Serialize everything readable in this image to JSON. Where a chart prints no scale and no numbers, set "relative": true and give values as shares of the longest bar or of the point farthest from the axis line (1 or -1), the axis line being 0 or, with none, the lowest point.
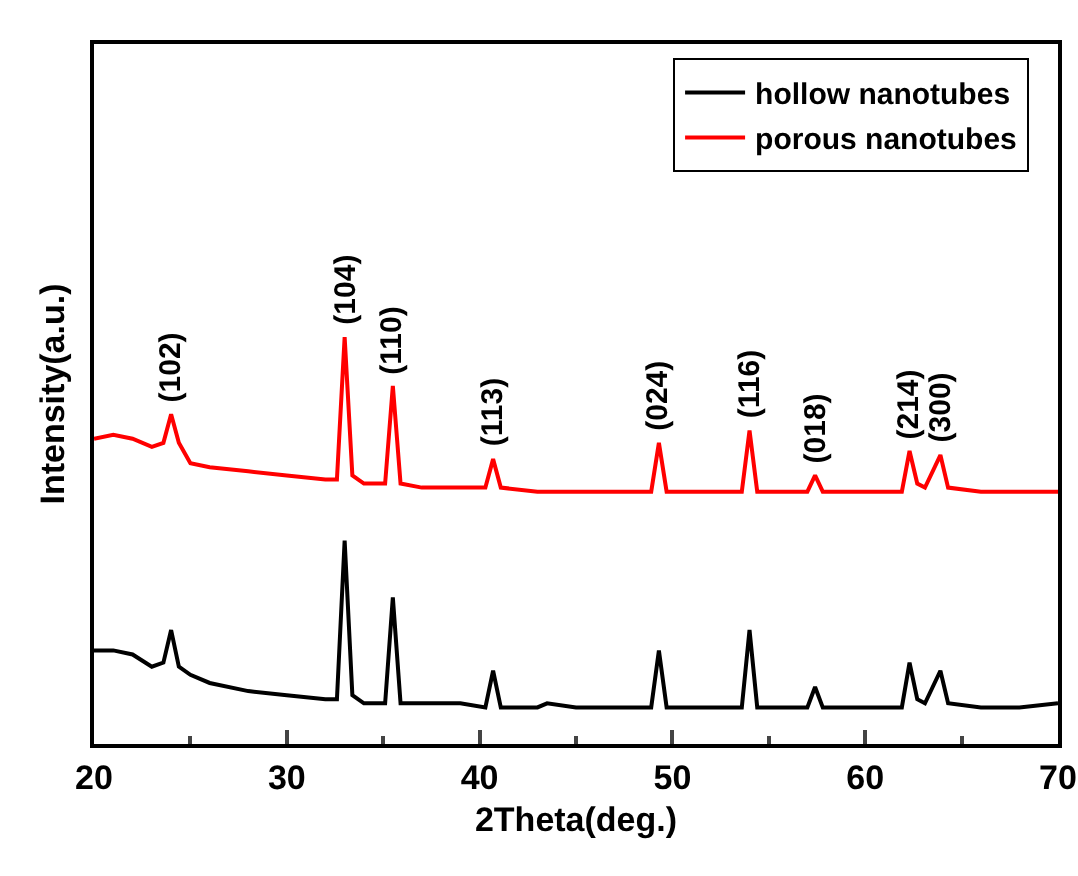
{
  "chart_data": {
    "type": "line",
    "relative": true,
    "xlabel": "2Theta(deg.)",
    "ylabel": "Intensity(a.u.)",
    "xlim": [
      20,
      70
    ],
    "xticks": [
      20,
      30,
      40,
      50,
      60,
      70
    ],
    "legend": "top right",
    "grid": false,
    "marker": "none",
    "line_style": "solid",
    "series": [
      {
        "name": "hollow nanotubes",
        "color": "#000000",
        "x": [
          20,
          21,
          22,
          23,
          23.6,
          24,
          24.4,
          25,
          26,
          28,
          30,
          32,
          32.6,
          33,
          33.4,
          34,
          35.1,
          35.5,
          35.9,
          37,
          39,
          40.3,
          40.7,
          41.1,
          43,
          43.5,
          45,
          48.9,
          49.3,
          49.7,
          52,
          53.6,
          54,
          54.4,
          57,
          57.4,
          57.8,
          60,
          61.9,
          62.3,
          62.7,
          63.1,
          63.9,
          64.3,
          66,
          68,
          70
        ],
        "values": [
          0.23,
          0.23,
          0.22,
          0.19,
          0.2,
          0.28,
          0.19,
          0.17,
          0.15,
          0.13,
          0.12,
          0.11,
          0.11,
          0.5,
          0.12,
          0.1,
          0.1,
          0.36,
          0.1,
          0.1,
          0.1,
          0.09,
          0.18,
          0.09,
          0.09,
          0.1,
          0.09,
          0.09,
          0.23,
          0.09,
          0.09,
          0.09,
          0.28,
          0.09,
          0.09,
          0.14,
          0.09,
          0.09,
          0.09,
          0.2,
          0.11,
          0.1,
          0.18,
          0.1,
          0.09,
          0.09,
          0.1
        ]
      },
      {
        "name": "porous nanotubes",
        "color": "#ff0000",
        "x": [
          20,
          21,
          22,
          23,
          23.6,
          24,
          24.4,
          25,
          26,
          28,
          30,
          32,
          32.6,
          33,
          33.4,
          34,
          35.1,
          35.5,
          35.9,
          37,
          39,
          40.3,
          40.7,
          41.1,
          43,
          45,
          48.9,
          49.3,
          49.7,
          52,
          53.6,
          54,
          54.4,
          57,
          57.4,
          57.8,
          60,
          61.9,
          62.3,
          62.7,
          63.1,
          63.9,
          64.3,
          66,
          68,
          70
        ],
        "values": [
          0.75,
          0.76,
          0.75,
          0.73,
          0.74,
          0.81,
          0.74,
          0.69,
          0.68,
          0.67,
          0.66,
          0.65,
          0.65,
          1.0,
          0.66,
          0.64,
          0.64,
          0.88,
          0.64,
          0.63,
          0.63,
          0.63,
          0.7,
          0.63,
          0.62,
          0.62,
          0.62,
          0.74,
          0.62,
          0.62,
          0.62,
          0.77,
          0.62,
          0.62,
          0.66,
          0.62,
          0.62,
          0.62,
          0.72,
          0.64,
          0.63,
          0.71,
          0.63,
          0.62,
          0.62,
          0.62
        ]
      }
    ],
    "annotations": [
      {
        "text": "(102)",
        "x": 24,
        "y": 0.81
      },
      {
        "text": "(104)",
        "x": 33,
        "y": 1.0
      },
      {
        "text": "(110)",
        "x": 35.5,
        "y": 0.88
      },
      {
        "text": "(113)",
        "x": 40.7,
        "y": 0.7
      },
      {
        "text": "(024)",
        "x": 49.3,
        "y": 0.74
      },
      {
        "text": "(116)",
        "x": 54,
        "y": 0.77
      },
      {
        "text": "(018)",
        "x": 57.4,
        "y": 0.66
      },
      {
        "text": "(214)",
        "x": 62.3,
        "y": 0.72
      },
      {
        "text": "(300)",
        "x": 63.9,
        "y": 0.71
      }
    ]
  }
}
